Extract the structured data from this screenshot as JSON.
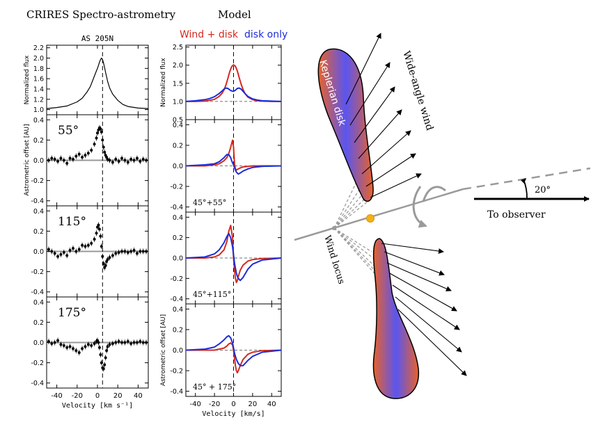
{
  "figure": {
    "left_title": "CRIRES Spectro-astrometry",
    "model_title": "Model",
    "legend": {
      "wind_label": "Wind + disk",
      "disk_label": "disk only"
    },
    "colors": {
      "wind": "#d42a1e",
      "disk": "#1c2cd8",
      "data": "#000000",
      "zero": "#999999"
    }
  },
  "chart_data": [
    {
      "id": "obs-flux",
      "type": "line",
      "title": "AS 205N",
      "ylabel": "Normalized flux",
      "xlim": [
        -50,
        50
      ],
      "ylim": [
        0.9,
        2.25
      ],
      "yticks": [
        "1.0",
        "1.2",
        "1.4",
        "1.6",
        "1.8",
        "2.0",
        "2.2"
      ],
      "xticks": [],
      "x": [
        -50,
        -40,
        -30,
        -20,
        -15,
        -10,
        -7,
        -5,
        -3,
        -1,
        0,
        1,
        2,
        3,
        4,
        5,
        6,
        7,
        8,
        10,
        12,
        15,
        20,
        25,
        30,
        40,
        50
      ],
      "series": [
        {
          "name": "AS 205N",
          "values": [
            1.02,
            1.04,
            1.07,
            1.15,
            1.22,
            1.35,
            1.45,
            1.55,
            1.65,
            1.75,
            1.8,
            1.86,
            1.92,
            1.97,
            2.0,
            1.97,
            1.9,
            1.82,
            1.72,
            1.55,
            1.42,
            1.3,
            1.18,
            1.1,
            1.06,
            1.03,
            1.02
          ]
        }
      ]
    },
    {
      "id": "obs-55",
      "type": "scatter",
      "angle_label": "55°",
      "ylabel": "Astrometric offset [AU]",
      "xlim": [
        -50,
        50
      ],
      "ylim": [
        -0.45,
        0.45
      ],
      "yticks": [
        "-0.4",
        "-0.2",
        "0.0",
        "0.2",
        "0.4"
      ],
      "xticks": [],
      "x": [
        -48,
        -45,
        -42,
        -39,
        -36,
        -33,
        -30,
        -27,
        -24,
        -21,
        -18,
        -15,
        -12,
        -9,
        -6,
        -3,
        -1,
        0,
        1,
        2,
        3,
        4,
        5,
        6,
        7,
        8,
        9,
        10,
        12,
        15,
        18,
        21,
        24,
        27,
        30,
        33,
        36,
        39,
        42,
        45,
        48
      ],
      "series": [
        {
          "name": "AS 205N",
          "values": [
            0.0,
            0.02,
            0.01,
            -0.01,
            0.02,
            0.0,
            -0.03,
            0.02,
            0.01,
            0.04,
            0.06,
            0.03,
            0.05,
            0.07,
            0.1,
            0.16,
            0.22,
            0.27,
            0.3,
            0.32,
            0.31,
            0.28,
            0.2,
            0.13,
            0.08,
            0.05,
            0.03,
            0.01,
            0.0,
            -0.02,
            0.01,
            -0.01,
            0.02,
            0.0,
            -0.02,
            0.01,
            0.0,
            0.02,
            -0.01,
            0.01,
            0.0
          ]
        }
      ]
    },
    {
      "id": "obs-115",
      "type": "scatter",
      "angle_label": "115°",
      "ylabel": "",
      "xlim": [
        -50,
        50
      ],
      "ylim": [
        -0.45,
        0.45
      ],
      "yticks": [
        "-0.4",
        "-0.2",
        "0.0",
        "0.2",
        "0.4"
      ],
      "xticks": [],
      "x": [
        -48,
        -45,
        -42,
        -39,
        -36,
        -33,
        -30,
        -27,
        -24,
        -21,
        -18,
        -15,
        -12,
        -9,
        -6,
        -3,
        -1,
        0,
        1,
        2,
        3,
        4,
        5,
        6,
        7,
        8,
        9,
        10,
        12,
        15,
        18,
        21,
        24,
        27,
        30,
        33,
        36,
        39,
        42,
        45,
        48
      ],
      "series": [
        {
          "name": "AS 205N",
          "values": [
            0.02,
            0.0,
            -0.02,
            -0.05,
            -0.03,
            -0.01,
            -0.04,
            0.01,
            0.03,
            0.0,
            0.02,
            0.06,
            0.05,
            0.06,
            0.08,
            0.12,
            0.18,
            0.24,
            0.26,
            0.22,
            0.15,
            0.05,
            -0.05,
            -0.12,
            -0.16,
            -0.14,
            -0.1,
            -0.08,
            -0.06,
            -0.04,
            -0.02,
            -0.01,
            0.0,
            0.0,
            -0.01,
            0.0,
            0.01,
            -0.02,
            0.0,
            0.0,
            0.0
          ]
        }
      ]
    },
    {
      "id": "obs-175",
      "type": "scatter",
      "angle_label": "175°",
      "ylabel": "",
      "xlim": [
        -50,
        50
      ],
      "ylim": [
        -0.45,
        0.45
      ],
      "yticks": [
        "-0.4",
        "-0.2",
        "0.0",
        "0.2",
        "0.4"
      ],
      "xticks": [
        "-40",
        "-20",
        "0",
        "20",
        "40"
      ],
      "xlabel": "Velocity [km s⁻¹]",
      "x": [
        -48,
        -45,
        -42,
        -39,
        -36,
        -33,
        -30,
        -27,
        -24,
        -21,
        -18,
        -15,
        -12,
        -9,
        -6,
        -3,
        -1,
        0,
        1,
        2,
        3,
        4,
        5,
        6,
        7,
        8,
        9,
        10,
        12,
        15,
        18,
        21,
        24,
        27,
        30,
        33,
        36,
        39,
        42,
        45,
        48
      ],
      "series": [
        {
          "name": "AS 205N",
          "values": [
            0.01,
            -0.01,
            0.0,
            0.02,
            -0.02,
            -0.03,
            -0.05,
            -0.04,
            -0.06,
            -0.08,
            -0.1,
            -0.06,
            -0.04,
            -0.02,
            -0.03,
            -0.01,
            0.01,
            0.02,
            0.0,
            -0.05,
            -0.12,
            -0.2,
            -0.25,
            -0.26,
            -0.22,
            -0.15,
            -0.08,
            -0.04,
            -0.02,
            -0.01,
            0.0,
            0.01,
            0.0,
            0.0,
            0.01,
            -0.01,
            0.0,
            0.0,
            0.01,
            0.0,
            0.0
          ]
        }
      ]
    },
    {
      "id": "model-flux",
      "type": "line",
      "ylabel": "Normalized flux",
      "xlim": [
        -50,
        50
      ],
      "ylim": [
        0.5,
        2.55
      ],
      "yticks": [
        "0.5",
        "1.0",
        "1.5",
        "2.0",
        "2.5"
      ],
      "xticks": [],
      "x": [
        -50,
        -40,
        -30,
        -25,
        -20,
        -15,
        -12,
        -10,
        -8,
        -6,
        -4,
        -2,
        0,
        2,
        4,
        6,
        8,
        10,
        12,
        15,
        20,
        25,
        30,
        40,
        50
      ],
      "series": [
        {
          "name": "Wind + disk",
          "values": [
            1.0,
            1.0,
            1.01,
            1.03,
            1.06,
            1.14,
            1.23,
            1.32,
            1.45,
            1.63,
            1.82,
            1.96,
            2.01,
            1.97,
            1.84,
            1.65,
            1.47,
            1.33,
            1.22,
            1.12,
            1.05,
            1.02,
            1.01,
            1.0,
            1.0
          ]
        },
        {
          "name": "disk only",
          "values": [
            1.0,
            1.02,
            1.05,
            1.08,
            1.13,
            1.22,
            1.29,
            1.34,
            1.37,
            1.36,
            1.32,
            1.29,
            1.28,
            1.31,
            1.36,
            1.37,
            1.34,
            1.28,
            1.22,
            1.14,
            1.07,
            1.04,
            1.02,
            1.01,
            1.0
          ]
        }
      ]
    },
    {
      "id": "model-55",
      "type": "line",
      "angle_label": "45°+55°",
      "ylabel": "",
      "xlim": [
        -50,
        50
      ],
      "ylim": [
        -0.45,
        0.45
      ],
      "yticks": [
        "-0.4",
        "-0.2",
        "0.0",
        "0.2",
        "0.4"
      ],
      "xticks": [],
      "x": [
        -50,
        -30,
        -20,
        -15,
        -10,
        -7,
        -5,
        -3,
        -2,
        -1,
        0,
        1,
        2,
        3,
        5,
        7,
        10,
        15,
        20,
        30,
        50
      ],
      "series": [
        {
          "name": "Wind + disk",
          "values": [
            0,
            0.0,
            0.01,
            0.02,
            0.05,
            0.08,
            0.12,
            0.18,
            0.22,
            0.25,
            0.18,
            0.02,
            -0.03,
            -0.04,
            -0.03,
            -0.02,
            -0.01,
            -0.005,
            0,
            0,
            0
          ]
        },
        {
          "name": "disk only",
          "values": [
            0,
            0.01,
            0.02,
            0.04,
            0.08,
            0.11,
            0.11,
            0.08,
            0.05,
            0.03,
            0.01,
            -0.02,
            -0.04,
            -0.06,
            -0.08,
            -0.07,
            -0.05,
            -0.03,
            -0.015,
            -0.005,
            0
          ]
        }
      ]
    },
    {
      "id": "model-115",
      "type": "line",
      "angle_label": "45°+115°",
      "ylabel": "",
      "xlim": [
        -50,
        50
      ],
      "ylim": [
        -0.45,
        0.45
      ],
      "yticks": [
        "-0.4",
        "-0.2",
        "0.0",
        "0.2",
        "0.4"
      ],
      "xticks": [],
      "x": [
        -50,
        -30,
        -20,
        -15,
        -10,
        -7,
        -5,
        -3,
        -1,
        0,
        1,
        2,
        3,
        4,
        5,
        7,
        10,
        15,
        20,
        30,
        50
      ],
      "series": [
        {
          "name": "Wind + disk",
          "values": [
            0,
            0.0,
            0.01,
            0.03,
            0.08,
            0.16,
            0.26,
            0.32,
            0.2,
            0.0,
            -0.12,
            -0.2,
            -0.24,
            -0.22,
            -0.18,
            -0.12,
            -0.07,
            -0.03,
            -0.015,
            -0.005,
            0
          ]
        },
        {
          "name": "disk only",
          "values": [
            0,
            0.01,
            0.04,
            0.08,
            0.15,
            0.21,
            0.24,
            0.2,
            0.11,
            0.03,
            -0.05,
            -0.1,
            -0.15,
            -0.18,
            -0.2,
            -0.22,
            -0.19,
            -0.11,
            -0.06,
            -0.02,
            0
          ]
        }
      ]
    },
    {
      "id": "model-175",
      "type": "line",
      "angle_label": "45° + 175°",
      "ylabel": "Astrometric offset [AU]",
      "xlim": [
        -50,
        50
      ],
      "ylim": [
        -0.45,
        0.45
      ],
      "yticks": [
        "-0.4",
        "-0.2",
        "0.0",
        "0.2",
        "0.4"
      ],
      "xticks": [
        "-40",
        "-20",
        "0",
        "20",
        "40"
      ],
      "xlabel": "Velocity [km/s]",
      "x": [
        -50,
        -30,
        -20,
        -15,
        -10,
        -7,
        -5,
        -3,
        -1,
        0,
        1,
        2,
        3,
        4,
        5,
        7,
        10,
        15,
        20,
        30,
        50
      ],
      "series": [
        {
          "name": "Wind + disk",
          "values": [
            0,
            0,
            0.0,
            0.01,
            0.02,
            0.04,
            0.06,
            0.07,
            0.05,
            0.0,
            -0.08,
            -0.15,
            -0.2,
            -0.22,
            -0.2,
            -0.15,
            -0.09,
            -0.04,
            -0.02,
            -0.005,
            0
          ]
        },
        {
          "name": "disk only",
          "values": [
            0,
            0.01,
            0.03,
            0.06,
            0.1,
            0.13,
            0.14,
            0.12,
            0.07,
            0.02,
            -0.03,
            -0.06,
            -0.09,
            -0.11,
            -0.13,
            -0.15,
            -0.15,
            -0.1,
            -0.06,
            -0.02,
            0
          ]
        }
      ]
    }
  ],
  "schematic": {
    "disk_label": "Keplerian disk",
    "wind_label": "Wide-angle wind",
    "locus_label": "Wind locus",
    "observer_label": "To observer",
    "inclination_label": "20°",
    "colors": {
      "orange": "#e8622a",
      "blue": "#5a55f0",
      "dash": "#9a9a9a",
      "star": "#f5b014"
    }
  }
}
